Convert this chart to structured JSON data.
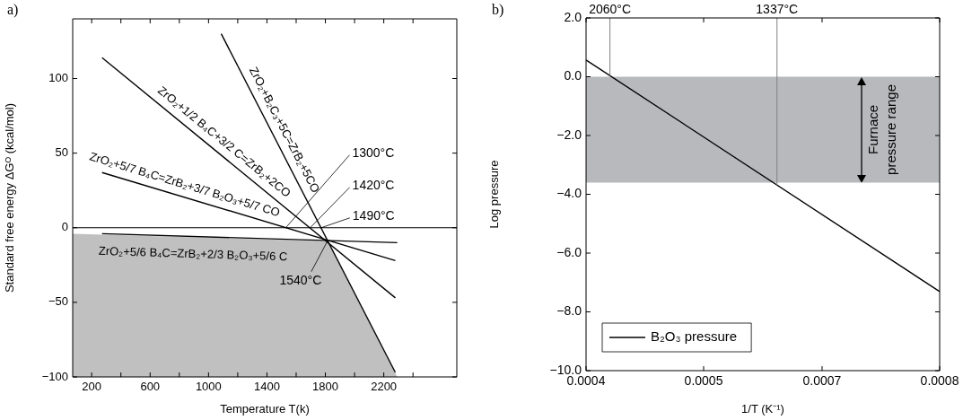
{
  "chart_data": [
    {
      "type": "line",
      "title": "a)",
      "xlabel": "Temperature T(k)",
      "ylabel": "Standard free energy ΔGᴼ (kcal/mol)",
      "xlim": [
        70,
        2700
      ],
      "ylim": [
        -100,
        140
      ],
      "xticks": [
        200,
        {
          "value": 400,
          "label": null
        },
        600,
        {
          "value": 800,
          "label": null
        },
        1000,
        {
          "value": 1200,
          "label": null
        },
        1400,
        {
          "value": 1600,
          "label": null
        },
        1800,
        {
          "value": 2000,
          "label": null
        },
        2200,
        {
          "value": 2400,
          "label": null
        }
      ],
      "yticks": [
        {
          "value": -100,
          "label": "−100"
        },
        {
          "value": -50,
          "label": "−50"
        },
        0,
        50,
        100
      ],
      "grid": false,
      "legend": false,
      "series": [
        {
          "type": "area",
          "color": "#c0c0c0",
          "x": [
            70,
            1814,
            2292,
            70
          ],
          "values": [
            -4,
            -9,
            -100,
            -100
          ]
        },
        {
          "name": "ZrO₂+B₂C₃+5C=ZrB₂+5CO",
          "color": "#000000",
          "x": [
            1087,
            2279
          ],
          "values": [
            130,
            -97
          ]
        },
        {
          "name": "ZrO₂+1/2 B₄C+3/2 C=ZrB₂+2CO",
          "color": "#000000",
          "x": [
            271,
            2279
          ],
          "values": [
            114,
            -47
          ]
        },
        {
          "name": "ZrO₂+5/7 B₄C=ZrB₂+3/7 B₂O₃+5/7 CO",
          "color": "#000000",
          "x": [
            271,
            2279
          ],
          "values": [
            37,
            -22
          ]
        },
        {
          "name": "ZrO₂+5/6 B₄C=ZrB₂+2/3 B₂O₃+5/6 C",
          "color": "#000000",
          "x": [
            271,
            2292
          ],
          "values": [
            -4,
            -10
          ]
        }
      ],
      "ref_lines": [
        {
          "axis": "y",
          "value": 0,
          "color": "#000000"
        }
      ],
      "annotations": [
        {
          "text": "1300°C",
          "x": 1529,
          "y": 0
        },
        {
          "text": "1420°C",
          "x": 1696,
          "y": 0
        },
        {
          "text": "1490°C",
          "x": 1771,
          "y": 0
        },
        {
          "text": "1540°C",
          "x": 1814,
          "y": -9
        }
      ]
    },
    {
      "type": "line",
      "title": "b)",
      "xlabel": "1/T (K⁻¹)",
      "ylabel": "Log pressure",
      "xlim": [
        0.0004,
        0.0008
      ],
      "ylim": [
        -10,
        2
      ],
      "xticks": [
        0.0004,
        {
          "value": 0.000533,
          "label": "0.0005"
        },
        {
          "value": 0.000667,
          "label": "0.0007"
        },
        0.0008
      ],
      "yticks": [
        {
          "value": 2,
          "label": "2.0"
        },
        {
          "value": 0,
          "label": "0.0"
        },
        {
          "value": -2,
          "label": "−2.0"
        },
        {
          "value": -4,
          "label": "−4.0"
        },
        {
          "value": -6,
          "label": "−6.0"
        },
        {
          "value": -8,
          "label": "−8.0"
        },
        {
          "value": -10,
          "label": "−10.0"
        }
      ],
      "grid": false,
      "legend": "bottom left",
      "series": [
        {
          "name": "B₂O₃ pressure",
          "color": "#000000",
          "x": [
            0.0004,
            0.0008
          ],
          "values": [
            0.57,
            -7.31
          ]
        }
      ],
      "bands": [
        {
          "axis": "y",
          "from": -3.6,
          "to": 0,
          "label": "Furnace\npressure range",
          "color": "#b8b9bc"
        }
      ],
      "ref_lines": [
        {
          "axis": "x",
          "value": 0.000427,
          "label": "2060°C",
          "color": "#808080"
        },
        {
          "axis": "x",
          "value": 0.000616,
          "label": "1337°C",
          "color": "#808080"
        }
      ]
    }
  ]
}
